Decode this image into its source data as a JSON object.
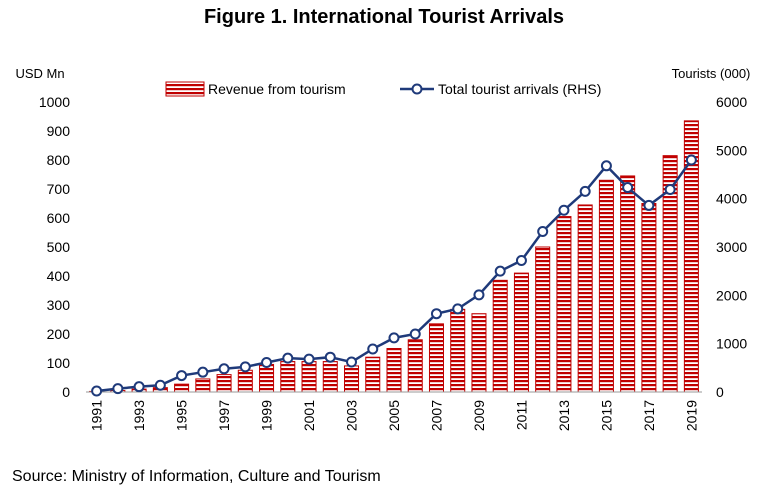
{
  "chart_data": {
    "type": "bar",
    "title": "Figure 1. International Tourist Arrivals",
    "source": "Source: Ministry of Information, Culture and Tourism",
    "left_axis_label": "USD Mn",
    "right_axis_label": "Tourists (000)",
    "x": [
      1991,
      1992,
      1993,
      1994,
      1995,
      1996,
      1997,
      1998,
      1999,
      2000,
      2001,
      2002,
      2003,
      2004,
      2005,
      2006,
      2007,
      2008,
      2009,
      2010,
      2011,
      2012,
      2013,
      2014,
      2015,
      2016,
      2017,
      2018,
      2019
    ],
    "x_tick_labels": [
      "1991",
      "1993",
      "1995",
      "1997",
      "1999",
      "2001",
      "2003",
      "2005",
      "2007",
      "2009",
      "2011",
      "2013",
      "2015",
      "2017",
      "2019"
    ],
    "y_left_ticks": [
      "0",
      "100",
      "200",
      "300",
      "400",
      "500",
      "600",
      "700",
      "800",
      "900",
      "1000"
    ],
    "y_right_ticks": [
      "0",
      "1000",
      "2000",
      "3000",
      "4000",
      "5000",
      "6000"
    ],
    "ylim_left": [
      0,
      1000
    ],
    "ylim_right": [
      0,
      6000
    ],
    "grid": false,
    "legend_position": "top",
    "series": [
      {
        "name": "Revenue from tourism",
        "type": "bar",
        "axis": "left",
        "color": "#c00000",
        "values": [
          2,
          5,
          10,
          15,
          27,
          45,
          60,
          75,
          95,
          105,
          105,
          105,
          90,
          120,
          150,
          180,
          235,
          285,
          270,
          385,
          410,
          500,
          605,
          645,
          730,
          745,
          650,
          815,
          935
        ]
      },
      {
        "name": "Total tourist arrivals (RHS)",
        "type": "line",
        "axis": "right",
        "color": "#1f3a7a",
        "values": [
          20,
          70,
          110,
          140,
          340,
          410,
          480,
          520,
          610,
          700,
          680,
          720,
          620,
          890,
          1120,
          1200,
          1620,
          1720,
          2010,
          2500,
          2720,
          3320,
          3760,
          4150,
          4680,
          4230,
          3860,
          4190,
          4800
        ]
      }
    ]
  }
}
